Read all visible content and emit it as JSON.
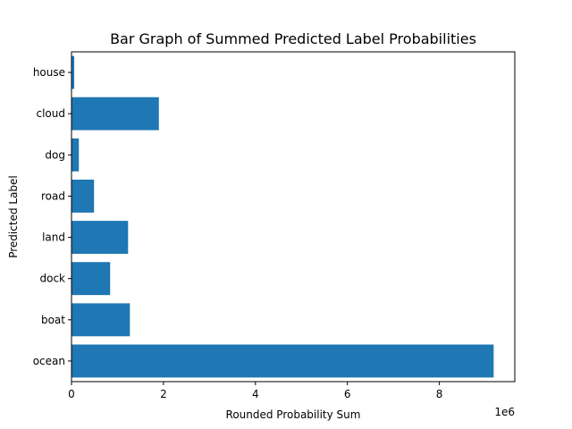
{
  "chart_data": {
    "type": "bar",
    "orientation": "horizontal",
    "title": "Bar Graph of Summed Predicted Label Probabilities",
    "xlabel": "Rounded Probability Sum",
    "ylabel": "Predicted Label",
    "x_offset_text": "1e6",
    "categories": [
      "ocean",
      "boat",
      "dock",
      "land",
      "road",
      "dog",
      "cloud",
      "house"
    ],
    "values": [
      9180000,
      1270000,
      840000,
      1230000,
      490000,
      160000,
      1900000,
      60000
    ],
    "xlim": [
      0,
      9640000
    ],
    "x_ticks": [
      0,
      2000000,
      4000000,
      6000000,
      8000000
    ],
    "x_tick_labels": [
      "0",
      "2",
      "4",
      "6",
      "8"
    ],
    "grid": false,
    "bar_color": "#1f77b4"
  }
}
